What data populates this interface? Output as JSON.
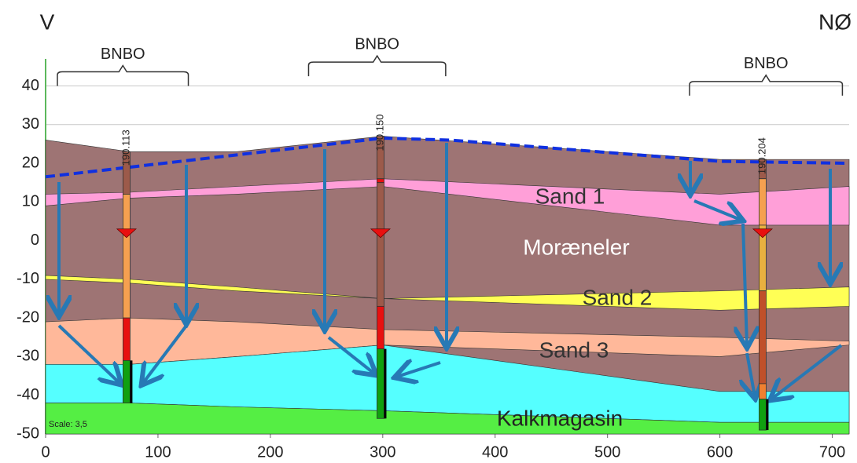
{
  "chart_data": {
    "type": "cross-section",
    "left_label": "V",
    "right_label": "NØ",
    "scale_note": "Scale: 3,5",
    "xlim": [
      0,
      715
    ],
    "ylim": [
      -50,
      47
    ],
    "xticks": [
      0,
      100,
      200,
      300,
      400,
      500,
      600,
      700
    ],
    "yticks": [
      -50,
      -40,
      -30,
      -20,
      -10,
      0,
      10,
      20,
      30,
      40
    ],
    "grid": true,
    "x": [
      0,
      75,
      170,
      300,
      600,
      715
    ],
    "layers": [
      {
        "name": "Moræneler",
        "color": "#9e7474",
        "top": [
          26,
          23,
          23,
          27,
          21,
          21
        ],
        "bottom": [
          -50,
          -50,
          -50,
          -50,
          -50,
          -50
        ]
      },
      {
        "name": "Sand 1",
        "color": "#ff9fd8",
        "top": [
          12,
          12.5,
          14,
          16,
          12,
          14
        ],
        "bottom": [
          9,
          11,
          12,
          14,
          4,
          4
        ]
      },
      {
        "name": "Sand 2",
        "color": "#ffff55",
        "top": [
          -9,
          -10,
          -12,
          -15,
          -13,
          -12
        ],
        "bottom": [
          -10,
          -11,
          -13,
          -15,
          -18,
          -17
        ]
      },
      {
        "name": "Sand 3",
        "color": "#ffb89a",
        "top": [
          -21,
          -20,
          -21,
          -23,
          -25,
          -26
        ],
        "bottom": [
          -32,
          -32,
          -30,
          -27,
          -30,
          -27
        ]
      },
      {
        "color": "#55ffff",
        "top": [
          -32,
          -32,
          -30,
          -27,
          -39,
          -39
        ],
        "bottom": [
          -42,
          -42,
          -43,
          -44,
          -47,
          -47
        ]
      },
      {
        "name": "Kalkmagasin",
        "color": "#55ee44",
        "top": [
          -42,
          -42,
          -43,
          -44,
          -47,
          -47
        ],
        "bottom": [
          -50,
          -50,
          -50,
          -50,
          -50,
          -50
        ]
      }
    ],
    "water_table": {
      "color": "#1030e0",
      "x": [
        0,
        75,
        300,
        360,
        600,
        715
      ],
      "values": [
        16.5,
        19,
        26.5,
        26,
        20.5,
        20
      ]
    },
    "boreholes": [
      {
        "id": "190.113",
        "x": 72,
        "water_level": 2,
        "intervals": [
          {
            "top": 23,
            "bottom": 12,
            "color": "#9c5a4a"
          },
          {
            "top": 12,
            "bottom": -20,
            "color": "#f5a050"
          },
          {
            "top": -20,
            "bottom": -31,
            "color": "#e81010"
          },
          {
            "top": -31,
            "bottom": -42,
            "color": "#10a010"
          }
        ]
      },
      {
        "id": "190.150",
        "x": 298,
        "water_level": 2,
        "intervals": [
          {
            "top": 27,
            "bottom": 16,
            "color": "#9c5a4a"
          },
          {
            "top": 16,
            "bottom": 15,
            "color": "#e81010"
          },
          {
            "top": 15,
            "bottom": -17,
            "color": "#9c5a4a"
          },
          {
            "top": -17,
            "bottom": -28,
            "color": "#e81010"
          },
          {
            "top": -28,
            "bottom": -46,
            "color": "#10a010"
          }
        ]
      },
      {
        "id": "190.204",
        "x": 638,
        "water_level": 2,
        "intervals": [
          {
            "top": 21,
            "bottom": 16,
            "color": "#9c5a4a"
          },
          {
            "top": 16,
            "bottom": 4,
            "color": "#f5a050"
          },
          {
            "top": 4,
            "bottom": -13,
            "color": "#e8b040"
          },
          {
            "top": -13,
            "bottom": -37,
            "color": "#c0502a"
          },
          {
            "top": -37,
            "bottom": -41,
            "color": "#f08030"
          },
          {
            "top": -41,
            "bottom": -49,
            "color": "#10a010"
          }
        ]
      }
    ],
    "bnbo": [
      {
        "label": "BNBO",
        "xlim": [
          10.5,
          127
        ],
        "y": 40
      },
      {
        "label": "BNBO",
        "xlim": [
          234,
          356
        ],
        "y": 42.5
      },
      {
        "label": "BNBO",
        "xlim": [
          573,
          709
        ],
        "y": 37.5
      }
    ]
  }
}
